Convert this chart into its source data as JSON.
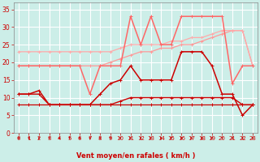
{
  "title": "",
  "xlabel": "Vent moyen/en rafales ( km/h )",
  "background_color": "#cceee8",
  "grid_color": "#aadddd",
  "x_values": [
    0,
    1,
    2,
    3,
    4,
    5,
    6,
    7,
    8,
    9,
    10,
    11,
    12,
    13,
    14,
    15,
    16,
    17,
    18,
    19,
    20,
    21,
    22,
    23
  ],
  "series": [
    {
      "color": "#ff9999",
      "linewidth": 0.9,
      "markersize": 2.5,
      "y": [
        19,
        19,
        19,
        19,
        19,
        19,
        19,
        19,
        19,
        20,
        21,
        22,
        23,
        23,
        24,
        24,
        25,
        25,
        26,
        27,
        28,
        29,
        29,
        19
      ]
    },
    {
      "color": "#ffaaaa",
      "linewidth": 0.9,
      "markersize": 2.5,
      "y": [
        23,
        23,
        23,
        23,
        23,
        23,
        23,
        23,
        23,
        23,
        24,
        25,
        25,
        25,
        25,
        26,
        26,
        27,
        27,
        28,
        29,
        29,
        29,
        19
      ]
    },
    {
      "color": "#ff6666",
      "linewidth": 1.1,
      "markersize": 3,
      "y": [
        19,
        19,
        19,
        19,
        19,
        19,
        19,
        11,
        19,
        19,
        19,
        33,
        25,
        33,
        25,
        25,
        33,
        33,
        33,
        33,
        33,
        14,
        19,
        19
      ]
    },
    {
      "color": "#cc0000",
      "linewidth": 1.0,
      "markersize": 2.5,
      "y": [
        11,
        11,
        11,
        8,
        8,
        8,
        8,
        8,
        8,
        8,
        9,
        10,
        10,
        10,
        10,
        10,
        10,
        10,
        10,
        10,
        10,
        10,
        8,
        8
      ]
    },
    {
      "color": "#cc0000",
      "linewidth": 1.1,
      "markersize": 3,
      "y": [
        11,
        11,
        12,
        8,
        8,
        8,
        8,
        8,
        11,
        14,
        15,
        19,
        15,
        15,
        15,
        15,
        23,
        23,
        23,
        19,
        11,
        11,
        5,
        8
      ]
    },
    {
      "color": "#cc0000",
      "linewidth": 0.9,
      "markersize": 2.5,
      "y": [
        8,
        8,
        8,
        8,
        8,
        8,
        8,
        8,
        8,
        8,
        8,
        8,
        8,
        8,
        8,
        8,
        8,
        8,
        8,
        8,
        8,
        8,
        8,
        8
      ]
    }
  ],
  "ylim": [
    0,
    37
  ],
  "yticks": [
    0,
    5,
    10,
    15,
    20,
    25,
    30,
    35
  ],
  "xlim": [
    -0.5,
    23.5
  ],
  "xticks": [
    0,
    1,
    2,
    3,
    4,
    5,
    6,
    7,
    8,
    9,
    10,
    11,
    12,
    13,
    14,
    15,
    16,
    17,
    18,
    19,
    20,
    21,
    22,
    23
  ],
  "arrow_color": "#cc0000",
  "tick_color": "#cc0000",
  "label_color": "#cc0000"
}
